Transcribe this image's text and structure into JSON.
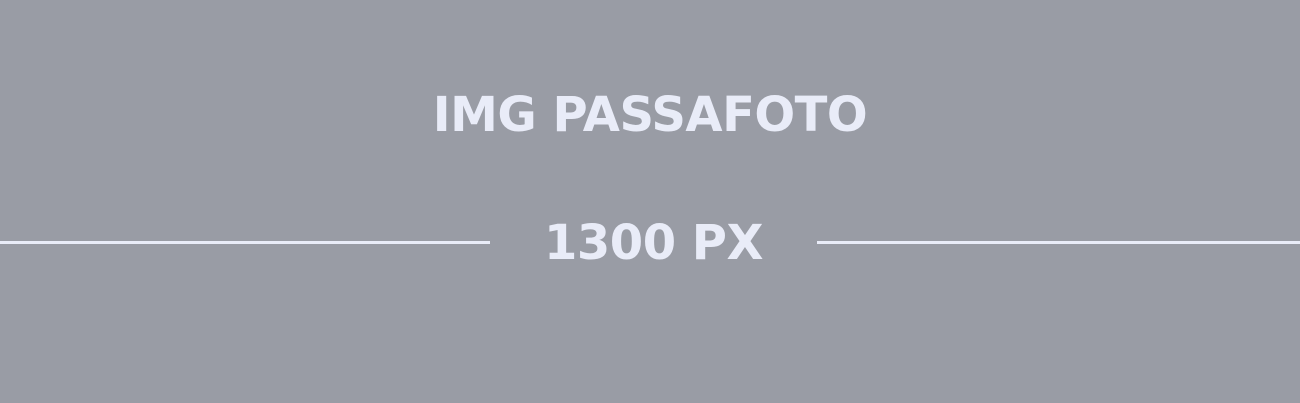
{
  "placeholder": {
    "title": "IMG PASSAFOTO",
    "width_label": "1300 PX",
    "colors": {
      "background": "#999ca5",
      "foreground": "#e9ecf8"
    }
  }
}
